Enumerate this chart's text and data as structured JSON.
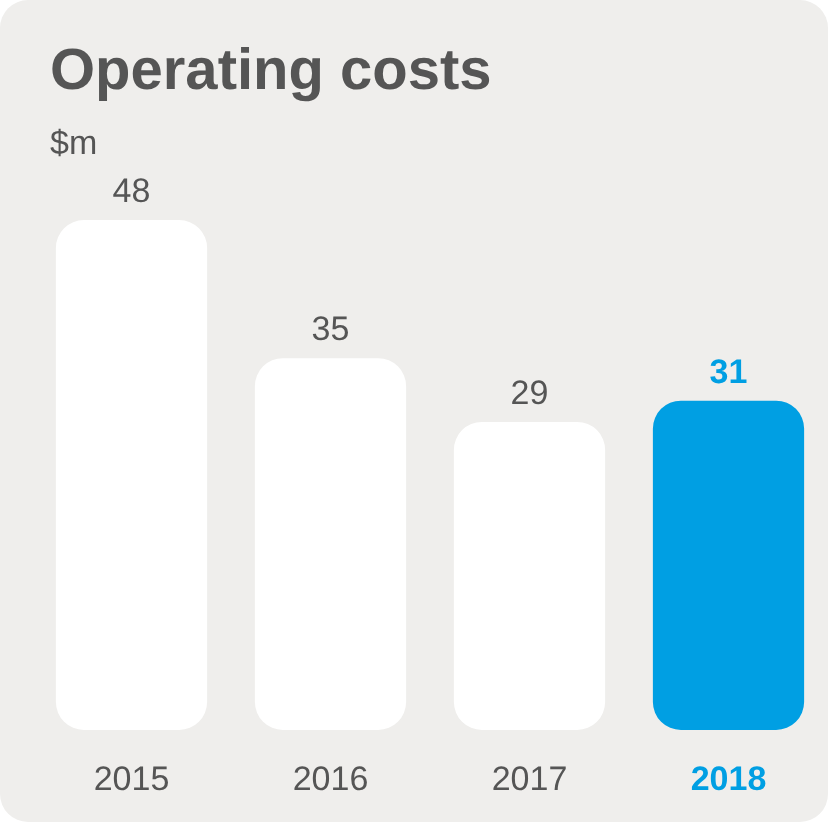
{
  "chart_data": {
    "type": "bar",
    "title": "Operating costs",
    "subtitle": "$m",
    "categories": [
      "2015",
      "2016",
      "2017",
      "2018"
    ],
    "values": [
      48,
      35,
      29,
      31
    ],
    "colors": [
      "#ffffff",
      "#ffffff",
      "#ffffff",
      "#009fe3"
    ],
    "data_labels": true
  }
}
